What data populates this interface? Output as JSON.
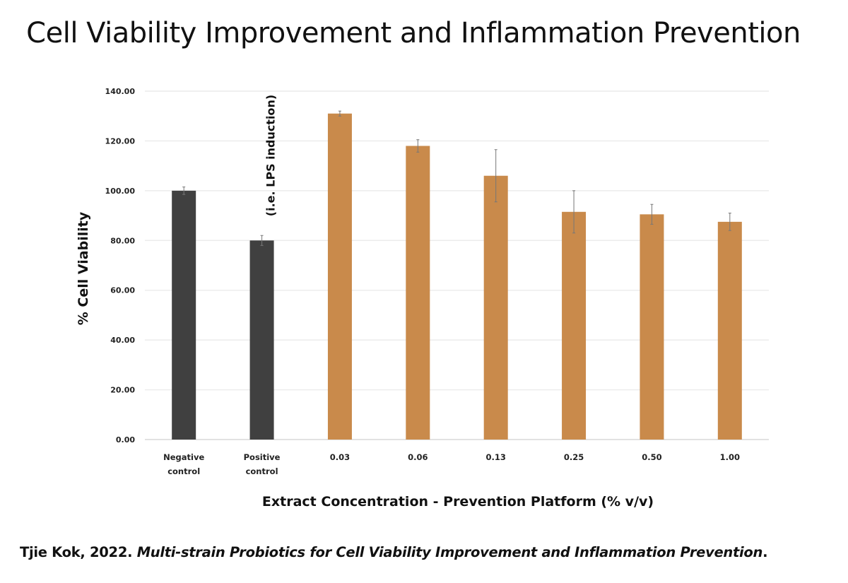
{
  "chart_data": {
    "type": "bar",
    "title": "Cell Viability Improvement and Inflammation Prevention",
    "xlabel": "Extract Concentration - Prevention Platform (% v/v)",
    "ylabel": "% Cell Viability",
    "ylim": [
      0,
      140
    ],
    "yticks": [
      "0.00",
      "20.00",
      "40.00",
      "60.00",
      "80.00",
      "100.00",
      "120.00",
      "140.00"
    ],
    "ytick_values": [
      0,
      20,
      40,
      60,
      80,
      100,
      120,
      140
    ],
    "grid": true,
    "categories": [
      [
        "Negative",
        "control"
      ],
      [
        "Positive",
        "control"
      ],
      [
        "0.03"
      ],
      [
        "0.06"
      ],
      [
        "0.13"
      ],
      [
        "0.25"
      ],
      [
        "0.50"
      ],
      [
        "1.00"
      ]
    ],
    "values": [
      100.0,
      80.0,
      131.0,
      118.0,
      106.0,
      91.5,
      90.5,
      87.5
    ],
    "errors": [
      1.5,
      2.0,
      1.0,
      2.5,
      10.5,
      8.5,
      4.0,
      3.5
    ],
    "colors": [
      "#404040",
      "#404040",
      "#c98a4b",
      "#c98a4b",
      "#c98a4b",
      "#c98a4b",
      "#c98a4b",
      "#c98a4b"
    ],
    "annotations": [
      {
        "text": "(i.e. LPS induction)",
        "category_index": 1,
        "orientation": "vertical"
      }
    ],
    "legend": "none"
  },
  "caption": {
    "author_year": "Tjie Kok, 2022. ",
    "work_title": "Multi-strain Probiotics for Cell Viability Improvement and Inflammation Prevention",
    "end": "."
  }
}
